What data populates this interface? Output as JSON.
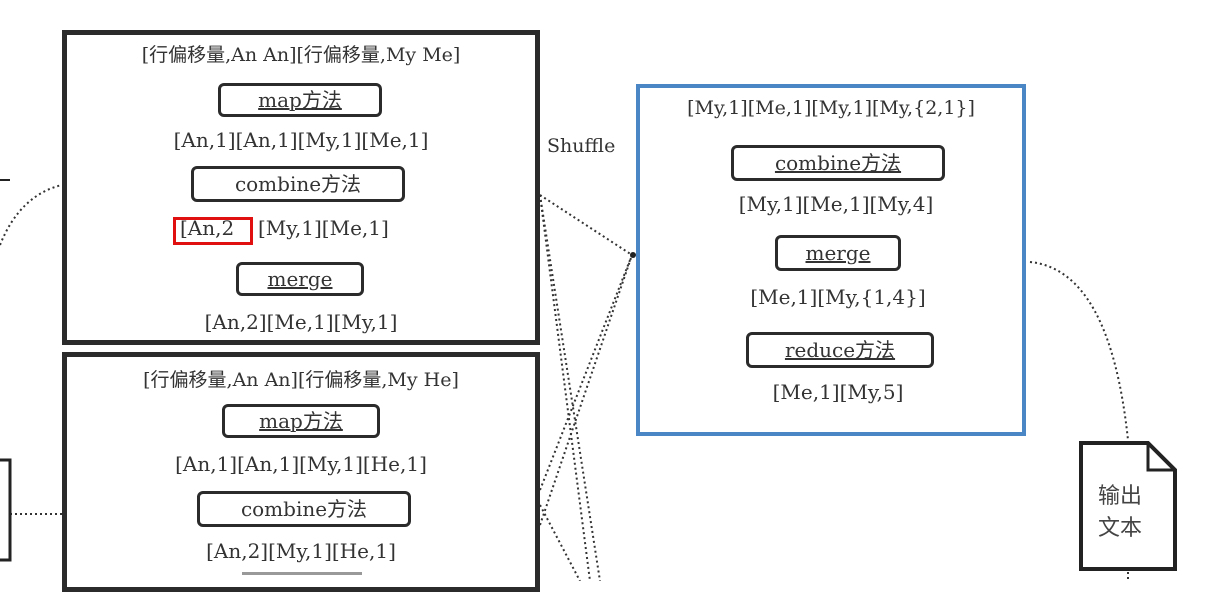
{
  "mapper1": {
    "input": "[行偏移量,An An][行偏移量,My Me]",
    "map": "map方法",
    "map_out": "[An,1][An,1][My,1][Me,1]",
    "combine": "combine方法",
    "combine_out_highlight": "[An,2",
    "combine_out_rest": "[My,1][Me,1]",
    "merge": "merge",
    "merge_out": "[An,2][Me,1][My,1]"
  },
  "mapper2": {
    "input": "[行偏移量,An An][行偏移量,My He]",
    "map": "map方法",
    "map_out": "[An,1][An,1][My,1][He,1]",
    "combine": "combine方法",
    "combine_out": "[An,2][My,1][He,1]"
  },
  "shuffle_label": "Shuffle",
  "reducer": {
    "input": "[My,1][Me,1][My,1][My,{2,1}]",
    "combine": "combine方法",
    "combine_out": "[My,1][Me,1][My,4]",
    "merge": "merge",
    "merge_out": "[Me,1][My,{1,4}]",
    "reduce": "reduce方法",
    "reduce_out": "[Me,1][My,5]"
  },
  "output_doc": {
    "line1": "输出",
    "line2": "文本"
  },
  "colors": {
    "reducer_border": "#4a86c5",
    "highlight": "#e01010"
  }
}
